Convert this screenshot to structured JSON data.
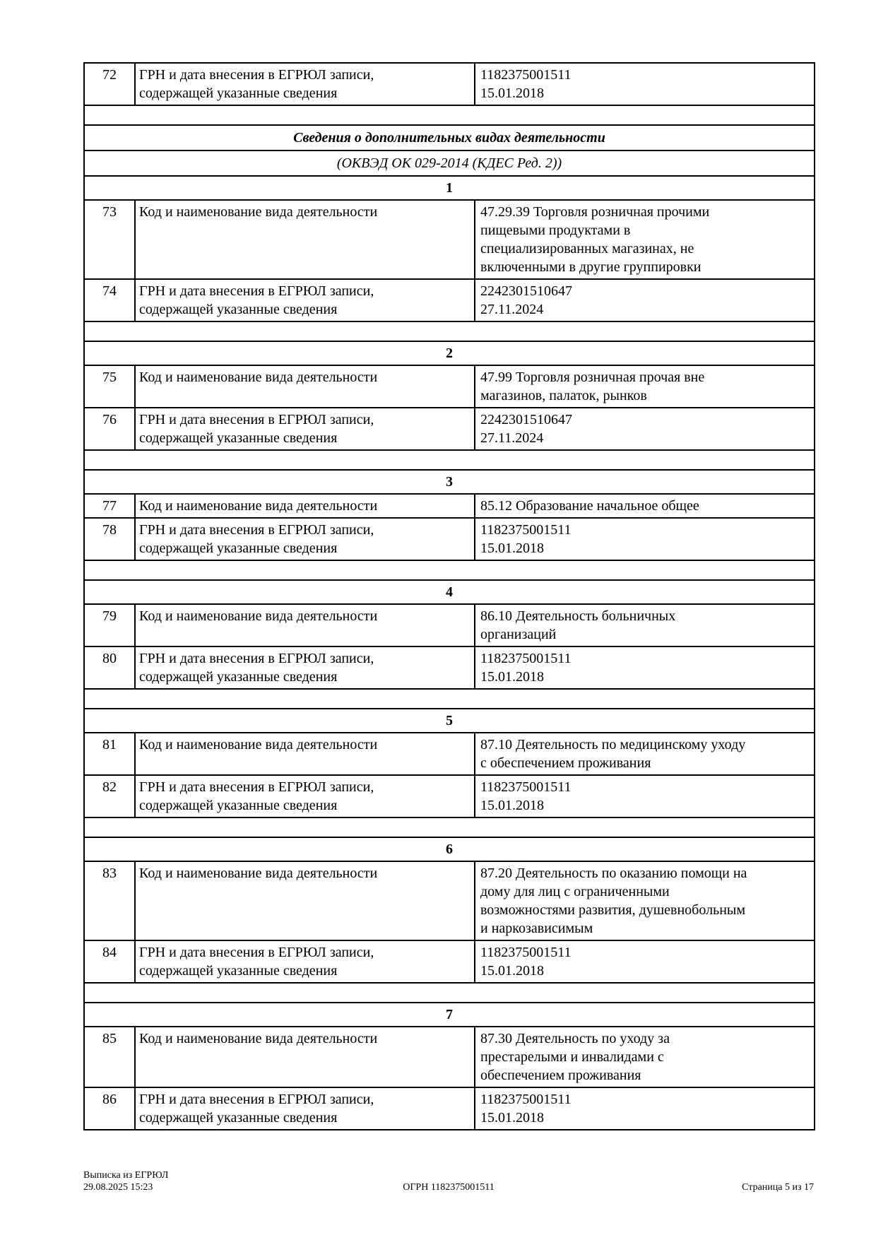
{
  "page": {
    "background": "#ffffff",
    "text_color": "#000000",
    "border_color": "#000000"
  },
  "top_row": {
    "num": "72",
    "label_lines": [
      "ГРН и дата внесения в ЕГРЮЛ записи,",
      "содержащей указанные сведения"
    ],
    "value_lines": [
      "1182375001511",
      "15.01.2018"
    ]
  },
  "section_header": {
    "title": "Сведения о дополнительных видах деятельности",
    "subtitle": "(ОКВЭД ОК 029-2014 (КДЕС Ред. 2))"
  },
  "sections": [
    {
      "num": "1",
      "rows": [
        {
          "num": "73",
          "label_lines": [
            "Код и наименование вида деятельности"
          ],
          "value_lines": [
            "47.29.39 Торговля розничная прочими",
            "пищевыми продуктами в",
            "специализированных магазинах, не",
            "включенными в другие группировки"
          ]
        },
        {
          "num": "74",
          "label_lines": [
            "ГРН и дата внесения в ЕГРЮЛ записи,",
            "содержащей указанные сведения"
          ],
          "value_lines": [
            "2242301510647",
            "27.11.2024"
          ]
        }
      ]
    },
    {
      "num": "2",
      "rows": [
        {
          "num": "75",
          "label_lines": [
            "Код и наименование вида деятельности"
          ],
          "value_lines": [
            "47.99 Торговля розничная прочая вне",
            "магазинов, палаток, рынков"
          ]
        },
        {
          "num": "76",
          "label_lines": [
            "ГРН и дата внесения в ЕГРЮЛ записи,",
            "содержащей указанные сведения"
          ],
          "value_lines": [
            "2242301510647",
            "27.11.2024"
          ]
        }
      ]
    },
    {
      "num": "3",
      "rows": [
        {
          "num": "77",
          "label_lines": [
            "Код и наименование вида деятельности"
          ],
          "value_lines": [
            "85.12 Образование начальное общее"
          ]
        },
        {
          "num": "78",
          "label_lines": [
            "ГРН и дата внесения в ЕГРЮЛ записи,",
            "содержащей указанные сведения"
          ],
          "value_lines": [
            "1182375001511",
            "15.01.2018"
          ]
        }
      ]
    },
    {
      "num": "4",
      "rows": [
        {
          "num": "79",
          "label_lines": [
            "Код и наименование вида деятельности"
          ],
          "value_lines": [
            "86.10 Деятельность больничных",
            "организаций"
          ]
        },
        {
          "num": "80",
          "label_lines": [
            "ГРН и дата внесения в ЕГРЮЛ записи,",
            "содержащей указанные сведения"
          ],
          "value_lines": [
            "1182375001511",
            "15.01.2018"
          ]
        }
      ]
    },
    {
      "num": "5",
      "rows": [
        {
          "num": "81",
          "label_lines": [
            "Код и наименование вида деятельности"
          ],
          "value_lines": [
            "87.10 Деятельность по медицинскому уходу",
            "с обеспечением проживания"
          ]
        },
        {
          "num": "82",
          "label_lines": [
            "ГРН и дата внесения в ЕГРЮЛ записи,",
            "содержащей указанные сведения"
          ],
          "value_lines": [
            "1182375001511",
            "15.01.2018"
          ]
        }
      ]
    },
    {
      "num": "6",
      "rows": [
        {
          "num": "83",
          "label_lines": [
            "Код и наименование вида деятельности"
          ],
          "value_lines": [
            "87.20 Деятельность по оказанию помощи на",
            "дому для лиц с ограниченными",
            "возможностями развития, душевнобольным",
            "и наркозависимым"
          ]
        },
        {
          "num": "84",
          "label_lines": [
            "ГРН и дата внесения в ЕГРЮЛ записи,",
            "содержащей указанные сведения"
          ],
          "value_lines": [
            "1182375001511",
            "15.01.2018"
          ]
        }
      ]
    },
    {
      "num": "7",
      "rows": [
        {
          "num": "85",
          "label_lines": [
            "Код и наименование вида деятельности"
          ],
          "value_lines": [
            "87.30 Деятельность по уходу за",
            "престарелыми и инвалидами с",
            "обеспечением проживания"
          ]
        },
        {
          "num": "86",
          "label_lines": [
            "ГРН и дата внесения в ЕГРЮЛ записи,",
            "содержащей указанные сведения"
          ],
          "value_lines": [
            "1182375001511",
            "15.01.2018"
          ]
        }
      ]
    }
  ],
  "footer": {
    "doc_type": "Выписка из ЕГРЮЛ",
    "datetime": "29.08.2025 15:23",
    "ogrn": "ОГРН 1182375001511",
    "page_info": "Страница 5 из 17"
  }
}
